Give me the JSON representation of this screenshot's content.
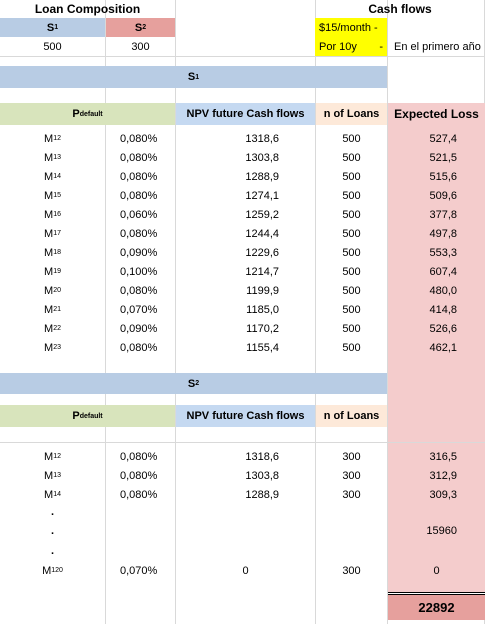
{
  "composition": {
    "title": "Loan Composition",
    "s1_base": "S",
    "s1_sub": "1",
    "s2_base": "S",
    "s2_sub": "2",
    "s1_value": "500",
    "s2_value": "300"
  },
  "cashflows": {
    "title": "Cash flows",
    "line1": "$15/month -",
    "line2": "Por 10y",
    "dash": "-",
    "note": "En el primero año"
  },
  "section1": {
    "label_base": "S",
    "label_sub": "1",
    "headers": {
      "pdefault_base": "P",
      "pdefault_sub": "default",
      "npv": "NPV future Cash flows",
      "loans": "n of Loans",
      "expected": "Expected Loss"
    },
    "rows": [
      {
        "m_base": "M",
        "m_sub": "12",
        "p": "0,080%",
        "npv": "1318,6",
        "n": "500",
        "el": "527,4"
      },
      {
        "m_base": "M",
        "m_sub": "13",
        "p": "0,080%",
        "npv": "1303,8",
        "n": "500",
        "el": "521,5"
      },
      {
        "m_base": "M",
        "m_sub": "14",
        "p": "0,080%",
        "npv": "1288,9",
        "n": "500",
        "el": "515,6"
      },
      {
        "m_base": "M",
        "m_sub": "15",
        "p": "0,080%",
        "npv": "1274,1",
        "n": "500",
        "el": "509,6"
      },
      {
        "m_base": "M",
        "m_sub": "16",
        "p": "0,060%",
        "npv": "1259,2",
        "n": "500",
        "el": "377,8"
      },
      {
        "m_base": "M",
        "m_sub": "17",
        "p": "0,080%",
        "npv": "1244,4",
        "n": "500",
        "el": "497,8"
      },
      {
        "m_base": "M",
        "m_sub": "18",
        "p": "0,090%",
        "npv": "1229,6",
        "n": "500",
        "el": "553,3"
      },
      {
        "m_base": "M",
        "m_sub": "19",
        "p": "0,100%",
        "npv": "1214,7",
        "n": "500",
        "el": "607,4"
      },
      {
        "m_base": "M",
        "m_sub": "20",
        "p": "0,080%",
        "npv": "1199,9",
        "n": "500",
        "el": "480,0"
      },
      {
        "m_base": "M",
        "m_sub": "21",
        "p": "0,070%",
        "npv": "1185,0",
        "n": "500",
        "el": "414,8"
      },
      {
        "m_base": "M",
        "m_sub": "22",
        "p": "0,090%",
        "npv": "1170,2",
        "n": "500",
        "el": "526,6"
      },
      {
        "m_base": "M",
        "m_sub": "23",
        "p": "0,080%",
        "npv": "1155,4",
        "n": "500",
        "el": "462,1"
      }
    ]
  },
  "section2": {
    "label_base": "S",
    "label_sub": "2",
    "headers": {
      "pdefault_base": "P",
      "pdefault_sub": "default",
      "npv": "NPV future Cash flows",
      "loans": "n of Loans"
    },
    "rows": [
      {
        "m_base": "M",
        "m_sub": "12",
        "p": "0,080%",
        "npv": "1318,6",
        "n": "300",
        "el": "316,5"
      },
      {
        "m_base": "M",
        "m_sub": "13",
        "p": "0,080%",
        "npv": "1303,8",
        "n": "300",
        "el": "312,9"
      },
      {
        "m_base": "M",
        "m_sub": "14",
        "p": "0,080%",
        "npv": "1288,9",
        "n": "300",
        "el": "309,3"
      }
    ],
    "dots": [
      ".",
      ".",
      "."
    ],
    "subtotal": "15960",
    "last_row": {
      "m_base": "M",
      "m_sub": "120",
      "p": "0,070%",
      "npv": "0",
      "n": "300",
      "el": "0"
    }
  },
  "total": "22892",
  "colors": {
    "s1_header": "#b8cce4",
    "s2_header": "#e6a09d",
    "section_band": "#b8cce4",
    "pdefault_header": "#d8e4bc",
    "npv_header": "#c5d9f1",
    "loans_header": "#fde9d9",
    "expected_loss": "#f4cccc",
    "highlight": "#ffff00"
  }
}
